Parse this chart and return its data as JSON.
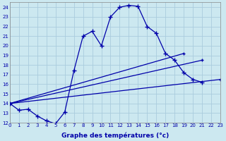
{
  "xlabel": "Graphe des températures (°c)",
  "background_color": "#cce8f0",
  "grid_color": "#aaccdd",
  "line_color": "#0000aa",
  "xlim": [
    0,
    23
  ],
  "ylim": [
    12,
    24.5
  ],
  "xticks": [
    0,
    1,
    2,
    3,
    4,
    5,
    6,
    7,
    8,
    9,
    10,
    11,
    12,
    13,
    14,
    15,
    16,
    17,
    18,
    19,
    20,
    21,
    22,
    23
  ],
  "yticks": [
    12,
    13,
    14,
    15,
    16,
    17,
    18,
    19,
    20,
    21,
    22,
    23,
    24
  ],
  "main_x": [
    0,
    1,
    2,
    3,
    4,
    5,
    6,
    7,
    8,
    9,
    10,
    11,
    12,
    13,
    14,
    15,
    16,
    17,
    18,
    19,
    20,
    21
  ],
  "main_y": [
    14.0,
    13.3,
    13.4,
    12.7,
    12.2,
    11.9,
    13.1,
    17.4,
    21.0,
    21.5,
    20.0,
    23.0,
    24.0,
    24.2,
    24.1,
    22.0,
    21.3,
    19.2,
    18.5,
    17.2,
    16.5,
    16.2
  ],
  "straight_lines": [
    {
      "x": [
        0,
        19
      ],
      "y": [
        14.0,
        19.2
      ]
    },
    {
      "x": [
        0,
        21
      ],
      "y": [
        14.0,
        18.5
      ]
    },
    {
      "x": [
        0,
        23
      ],
      "y": [
        14.0,
        16.5
      ]
    }
  ]
}
